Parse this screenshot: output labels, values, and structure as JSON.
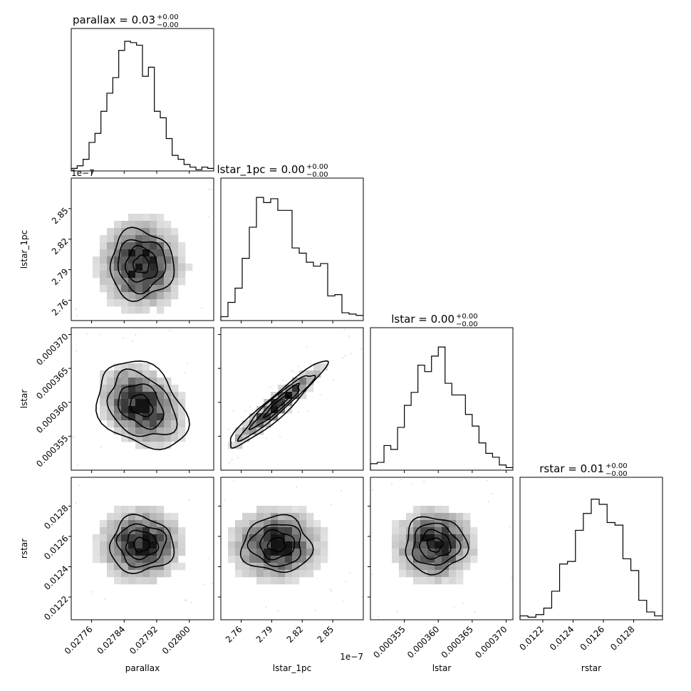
{
  "chart_data": {
    "type": "corner",
    "parameters": [
      {
        "name": "parallax",
        "axis_label": "parallax",
        "title_main": "parallax = 0.03",
        "title_sup": "+0.00",
        "title_sub": "−0.00",
        "range": [
          0.02771,
          0.02806
        ],
        "ticks": [
          0.02776,
          0.02784,
          0.02792,
          0.028
        ],
        "tick_labels": [
          "0.02776",
          "0.02784",
          "0.02792",
          "0.02800"
        ],
        "offset_text": "",
        "mean": 0.027882,
        "sigma": 5.5e-05,
        "histogram": [
          0.02,
          0.04,
          0.09,
          0.22,
          0.29,
          0.46,
          0.6,
          0.72,
          0.93,
          1.0,
          0.99,
          0.97,
          0.73,
          0.8,
          0.46,
          0.41,
          0.25,
          0.12,
          0.09,
          0.05,
          0.03,
          0.01,
          0.03,
          0.02
        ]
      },
      {
        "name": "lstar_1pc",
        "axis_label": "lstar_1pc",
        "title_main": "lstar_1pc = 0.00",
        "title_sup": "+0.00",
        "title_sub": "−0.00",
        "range": [
          2.74,
          2.88
        ],
        "ticks": [
          2.76,
          2.79,
          2.82,
          2.85
        ],
        "tick_labels": [
          "2.76",
          "2.79",
          "2.82",
          "2.85"
        ],
        "offset_text": "1e−7",
        "mean": 2.795,
        "sigma": 0.024,
        "histogram": [
          0.03,
          0.14,
          0.25,
          0.48,
          0.72,
          0.95,
          0.91,
          0.94,
          0.85,
          0.85,
          0.56,
          0.52,
          0.45,
          0.42,
          0.44,
          0.19,
          0.2,
          0.06,
          0.05,
          0.04
        ]
      },
      {
        "name": "lstar",
        "axis_label": "lstar",
        "title_main": "lstar = 0.00",
        "title_sup": "+0.00",
        "title_sub": "−0.00",
        "range": [
          0.00035,
          0.000371
        ],
        "ticks": [
          0.000355,
          0.00036,
          0.000365,
          0.00037
        ],
        "tick_labels": [
          "0.000355",
          "0.000360",
          "0.000365",
          "0.000370"
        ],
        "offset_text": "",
        "mean": 0.0003595,
        "sigma": 3.2e-06,
        "histogram": [
          0.05,
          0.06,
          0.19,
          0.16,
          0.33,
          0.5,
          0.6,
          0.81,
          0.76,
          0.88,
          0.95,
          0.67,
          0.58,
          0.58,
          0.43,
          0.34,
          0.21,
          0.13,
          0.1,
          0.04,
          0.02
        ]
      },
      {
        "name": "rstar",
        "axis_label": "rstar",
        "title_main": "rstar = 0.01",
        "title_sup": "+0.00",
        "title_sub": "−0.00",
        "range": [
          0.01205,
          0.01299
        ],
        "ticks": [
          0.0122,
          0.0124,
          0.0126,
          0.0128
        ],
        "tick_labels": [
          "0.0122",
          "0.0124",
          "0.0126",
          "0.0128"
        ],
        "offset_text": "",
        "mean": 0.012545,
        "sigma": 0.00013,
        "histogram": [
          0.03,
          0.02,
          0.04,
          0.09,
          0.22,
          0.43,
          0.45,
          0.69,
          0.82,
          0.93,
          0.89,
          0.75,
          0.73,
          0.47,
          0.38,
          0.15,
          0.06,
          0.03
        ]
      }
    ],
    "correlations": {
      "lstar_1pc|parallax": 0.0,
      "lstar|parallax": -0.3,
      "lstar|lstar_1pc": 0.95,
      "rstar|parallax": 0.0,
      "rstar|lstar_1pc": 0.0,
      "rstar|lstar": 0.0
    },
    "contour_levels_sigma": [
      0.5,
      1.0,
      1.5,
      2.0
    ],
    "grid": false,
    "legend": "none"
  }
}
